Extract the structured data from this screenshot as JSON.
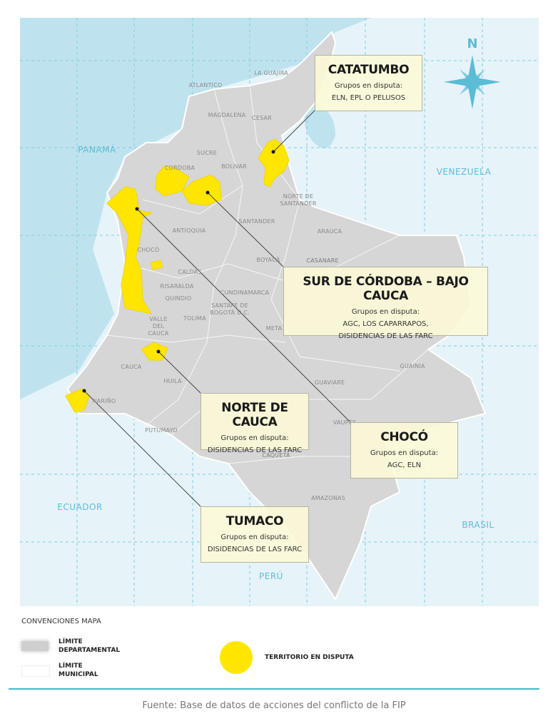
{
  "colors": {
    "sea": "#bfe3ee",
    "land": "#d6d6d6",
    "neighbor": "#e6f3f8",
    "disputed": "#ffe600",
    "accent": "#47b8c8"
  },
  "compass": {
    "icon": "compass-rose-icon",
    "letter": "N"
  },
  "countries": [
    "PANAMÁ",
    "VENEZUELA",
    "ECUADOR",
    "BRASIL",
    "PERÚ"
  ],
  "departments": [
    "LA GUAJIRA",
    "ATLANTICO",
    "MAGDALENA",
    "CESAR",
    "SUCRE",
    "CORDOBA",
    "BOLIVAR",
    "NORTE DE SANTANDER",
    "SANTANDER",
    "ANTIOQUIA",
    "ARAUCA",
    "CHOCÓ",
    "BOYACÁ",
    "CASANARE",
    "CALDAS",
    "RISARALDA",
    "QUINDIO",
    "CUNDINAMARCA",
    "SANTAFE DE BOGOTÁ D.C.",
    "TOLIMA",
    "VALLE DEL CAUCA",
    "META",
    "CAUCA",
    "HUILA",
    "GUAINIA",
    "GUAVIARE",
    "NARIÑO",
    "PUTUMAYO",
    "CAQUETÁ",
    "VAUPÉS",
    "AMAZONAS"
  ],
  "callouts": [
    {
      "title": "CATATUMBO",
      "subtitle": "Grupos en disputa:",
      "groups": [
        "ELN, EPL O PELUSOS"
      ]
    },
    {
      "title": "SUR DE CÓRDOBA – BAJO CAUCA",
      "subtitle": "Grupos en disputa:",
      "groups": [
        "AGC, LOS CAPARRAPOS,",
        "DISIDENCIAS DE LAS FARC"
      ]
    },
    {
      "title": "NORTE DE CAUCA",
      "subtitle": "Grupos en disputa:",
      "groups": [
        "DISIDENCIAS DE LAS FARC"
      ]
    },
    {
      "title": "CHOCÓ",
      "subtitle": "Grupos en disputa:",
      "groups": [
        "AGC, ELN"
      ]
    },
    {
      "title": "TUMACO",
      "subtitle": "Grupos en disputa:",
      "groups": [
        "DISIDENCIAS DE LAS FARC"
      ]
    }
  ],
  "legend": {
    "title": "CONVENCIONES MAPA",
    "items": [
      "LÍMITE DEPARTAMENTAL",
      "LÍMITE MUNICIPAL",
      "TERRITORIO EN DISPUTA"
    ]
  },
  "source": "Fuente: Base de datos de acciones del conflicto de la FIP"
}
